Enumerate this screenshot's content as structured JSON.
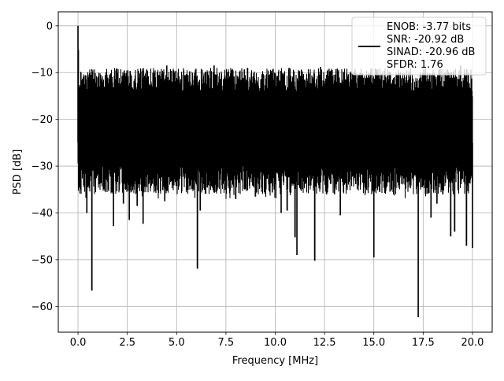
{
  "chart_data": {
    "type": "line",
    "title": "",
    "xlabel": "Frequency [MHz]",
    "ylabel": "PSD [dB]",
    "xlim": [
      -1.0,
      21.0
    ],
    "ylim": [
      -65.5,
      3.0
    ],
    "x_ticks": [
      0.0,
      2.5,
      5.0,
      7.5,
      10.0,
      12.5,
      15.0,
      17.5,
      20.0
    ],
    "x_tick_labels": [
      "0.0",
      "2.5",
      "5.0",
      "7.5",
      "10.0",
      "12.5",
      "15.0",
      "17.5",
      "20.0"
    ],
    "y_ticks": [
      0,
      -10,
      -20,
      -30,
      -40,
      -50,
      -60
    ],
    "y_tick_labels": [
      "0",
      "−10",
      "−20",
      "−30",
      "−40",
      "−50",
      "−60"
    ],
    "grid": true,
    "legend_position": "top-right",
    "legend_lines": [
      "ENOB: -3.77 bits",
      "SNR: -20.92 dB",
      "SINAD: -20.96 dB",
      "SFDR: 1.76"
    ],
    "line_color": "#000000",
    "series": [
      {
        "noise_band_low_db": -30,
        "noise_band_high_db": -12,
        "points": [
          [
            0.0,
            0.0
          ],
          [
            0.02,
            -5.2
          ],
          [
            0.05,
            -18.5
          ],
          [
            0.1,
            -24.0
          ],
          [
            0.2,
            -30.5
          ],
          [
            0.3,
            -22.0
          ],
          [
            0.45,
            -40.0
          ],
          [
            0.7,
            -56.6
          ],
          [
            1.0,
            -27.0
          ],
          [
            1.2,
            -33.5
          ],
          [
            1.8,
            -42.8
          ],
          [
            2.3,
            -38.0
          ],
          [
            2.6,
            -41.5
          ],
          [
            3.0,
            -38.5
          ],
          [
            3.3,
            -42.3
          ],
          [
            3.6,
            -25.0
          ],
          [
            4.4,
            -37.5
          ],
          [
            4.5,
            -8.5
          ],
          [
            5.5,
            -31.5
          ],
          [
            6.05,
            -51.9
          ],
          [
            6.2,
            -39.5
          ],
          [
            6.5,
            -34.5
          ],
          [
            6.9,
            -8.5
          ],
          [
            7.0,
            -35.5
          ],
          [
            8.0,
            -37.0
          ],
          [
            8.6,
            -9.0
          ],
          [
            9.0,
            -36.5
          ],
          [
            10.3,
            -40.0
          ],
          [
            10.6,
            -39.5
          ],
          [
            10.7,
            -9.0
          ],
          [
            11.0,
            -45.2
          ],
          [
            11.1,
            -49.0
          ],
          [
            12.0,
            -50.2
          ],
          [
            12.3,
            -8.8
          ],
          [
            12.6,
            -36.0
          ],
          [
            13.0,
            -36.0
          ],
          [
            13.3,
            -40.5
          ],
          [
            13.5,
            -10.0
          ],
          [
            15.0,
            -49.5
          ],
          [
            15.3,
            -35.5
          ],
          [
            15.5,
            -12.0
          ],
          [
            16.0,
            -36.0
          ],
          [
            17.25,
            -62.3
          ],
          [
            17.4,
            -34.5
          ],
          [
            17.9,
            -41.0
          ],
          [
            18.2,
            -38.0
          ],
          [
            18.5,
            -36.0
          ],
          [
            18.9,
            -45.0
          ],
          [
            19.1,
            -44.0
          ],
          [
            19.4,
            -8.5
          ],
          [
            19.7,
            -47.0
          ],
          [
            20.0,
            -47.5
          ]
        ]
      }
    ]
  }
}
